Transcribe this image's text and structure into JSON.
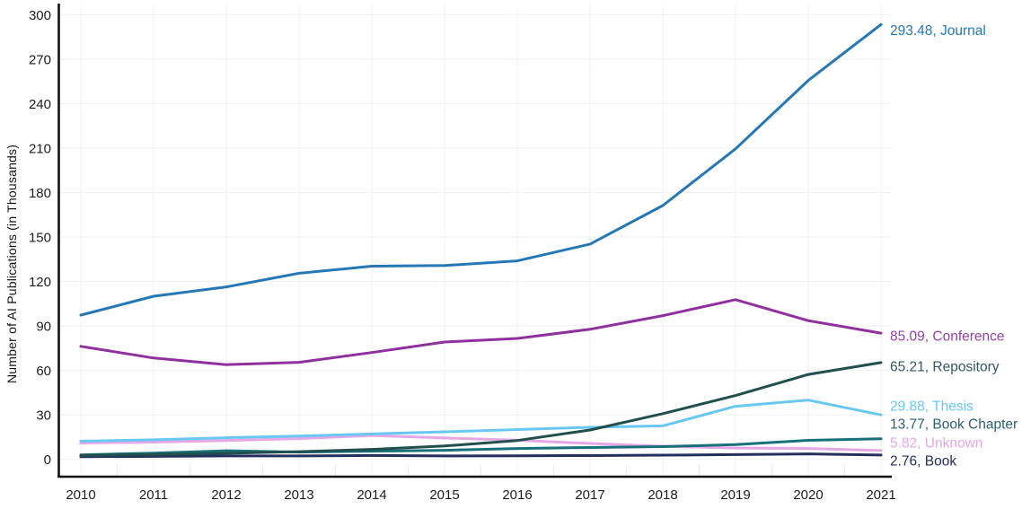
{
  "figure": {
    "ylabel": "Number of AI Publications (in Thousands)"
  },
  "chart_data": {
    "type": "line",
    "title": "",
    "xlabel": "",
    "ylabel": "Number of AI Publications (in Thousands)",
    "x": [
      2010,
      2011,
      2012,
      2013,
      2014,
      2015,
      2016,
      2017,
      2018,
      2019,
      2020,
      2021
    ],
    "yticks": [
      0,
      30,
      60,
      90,
      120,
      150,
      180,
      210,
      240,
      270,
      300
    ],
    "ylim": [
      -13,
      305
    ],
    "grid": true,
    "legend_position": "right-end-of-line-labels",
    "axis_color": "#111111",
    "grid_color": "#f2f2f2",
    "series": [
      {
        "name": "Unknown",
        "color": "#e6a7e7",
        "end_label": "5.82, Unknown",
        "values": [
          10.9,
          11.5,
          12.6,
          13.9,
          16.0,
          14.3,
          12.8,
          10.6,
          8.7,
          7.5,
          7.2,
          5.82
        ]
      },
      {
        "name": "Thesis",
        "color": "#69c8f3",
        "end_label": "29.88, Thesis",
        "values": [
          12.1,
          13.1,
          14.5,
          15.6,
          17.0,
          18.5,
          20.0,
          21.5,
          22.5,
          35.7,
          39.9,
          29.88
        ]
      },
      {
        "name": "Book",
        "color": "#232f5c",
        "end_label": "2.76, Book",
        "values": [
          1.7,
          1.9,
          2.2,
          2.2,
          2.5,
          2.2,
          2.3,
          2.4,
          2.7,
          3.1,
          3.6,
          2.76
        ]
      },
      {
        "name": "Book Chapter",
        "color": "#18707b",
        "label_color": "#2b5f70",
        "end_label": "13.77, Book Chapter",
        "values": [
          2.9,
          4.1,
          5.7,
          4.8,
          5.4,
          6.0,
          7.2,
          7.9,
          8.5,
          9.9,
          12.7,
          13.77
        ]
      },
      {
        "name": "Repository",
        "color": "#214f4e",
        "label_color": "#33565e",
        "end_label": "65.21, Repository",
        "values": [
          2.6,
          3.1,
          4.0,
          5.1,
          6.6,
          8.9,
          12.6,
          19.7,
          30.7,
          43.0,
          57.2,
          65.21
        ]
      },
      {
        "name": "Conference",
        "color": "#90309f",
        "label_color": "#9340a8",
        "end_label": "85.09, Conference",
        "values": [
          76.2,
          68.3,
          63.8,
          65.4,
          72.0,
          79.1,
          81.5,
          87.7,
          96.9,
          107.7,
          93.5,
          85.09
        ]
      },
      {
        "name": "Journal",
        "color": "#2577b5",
        "end_label": "293.48, Journal",
        "values": [
          97.3,
          110.0,
          116.3,
          125.5,
          130.3,
          130.7,
          133.9,
          145.2,
          171.2,
          209.5,
          255.7,
          293.48
        ]
      }
    ]
  }
}
